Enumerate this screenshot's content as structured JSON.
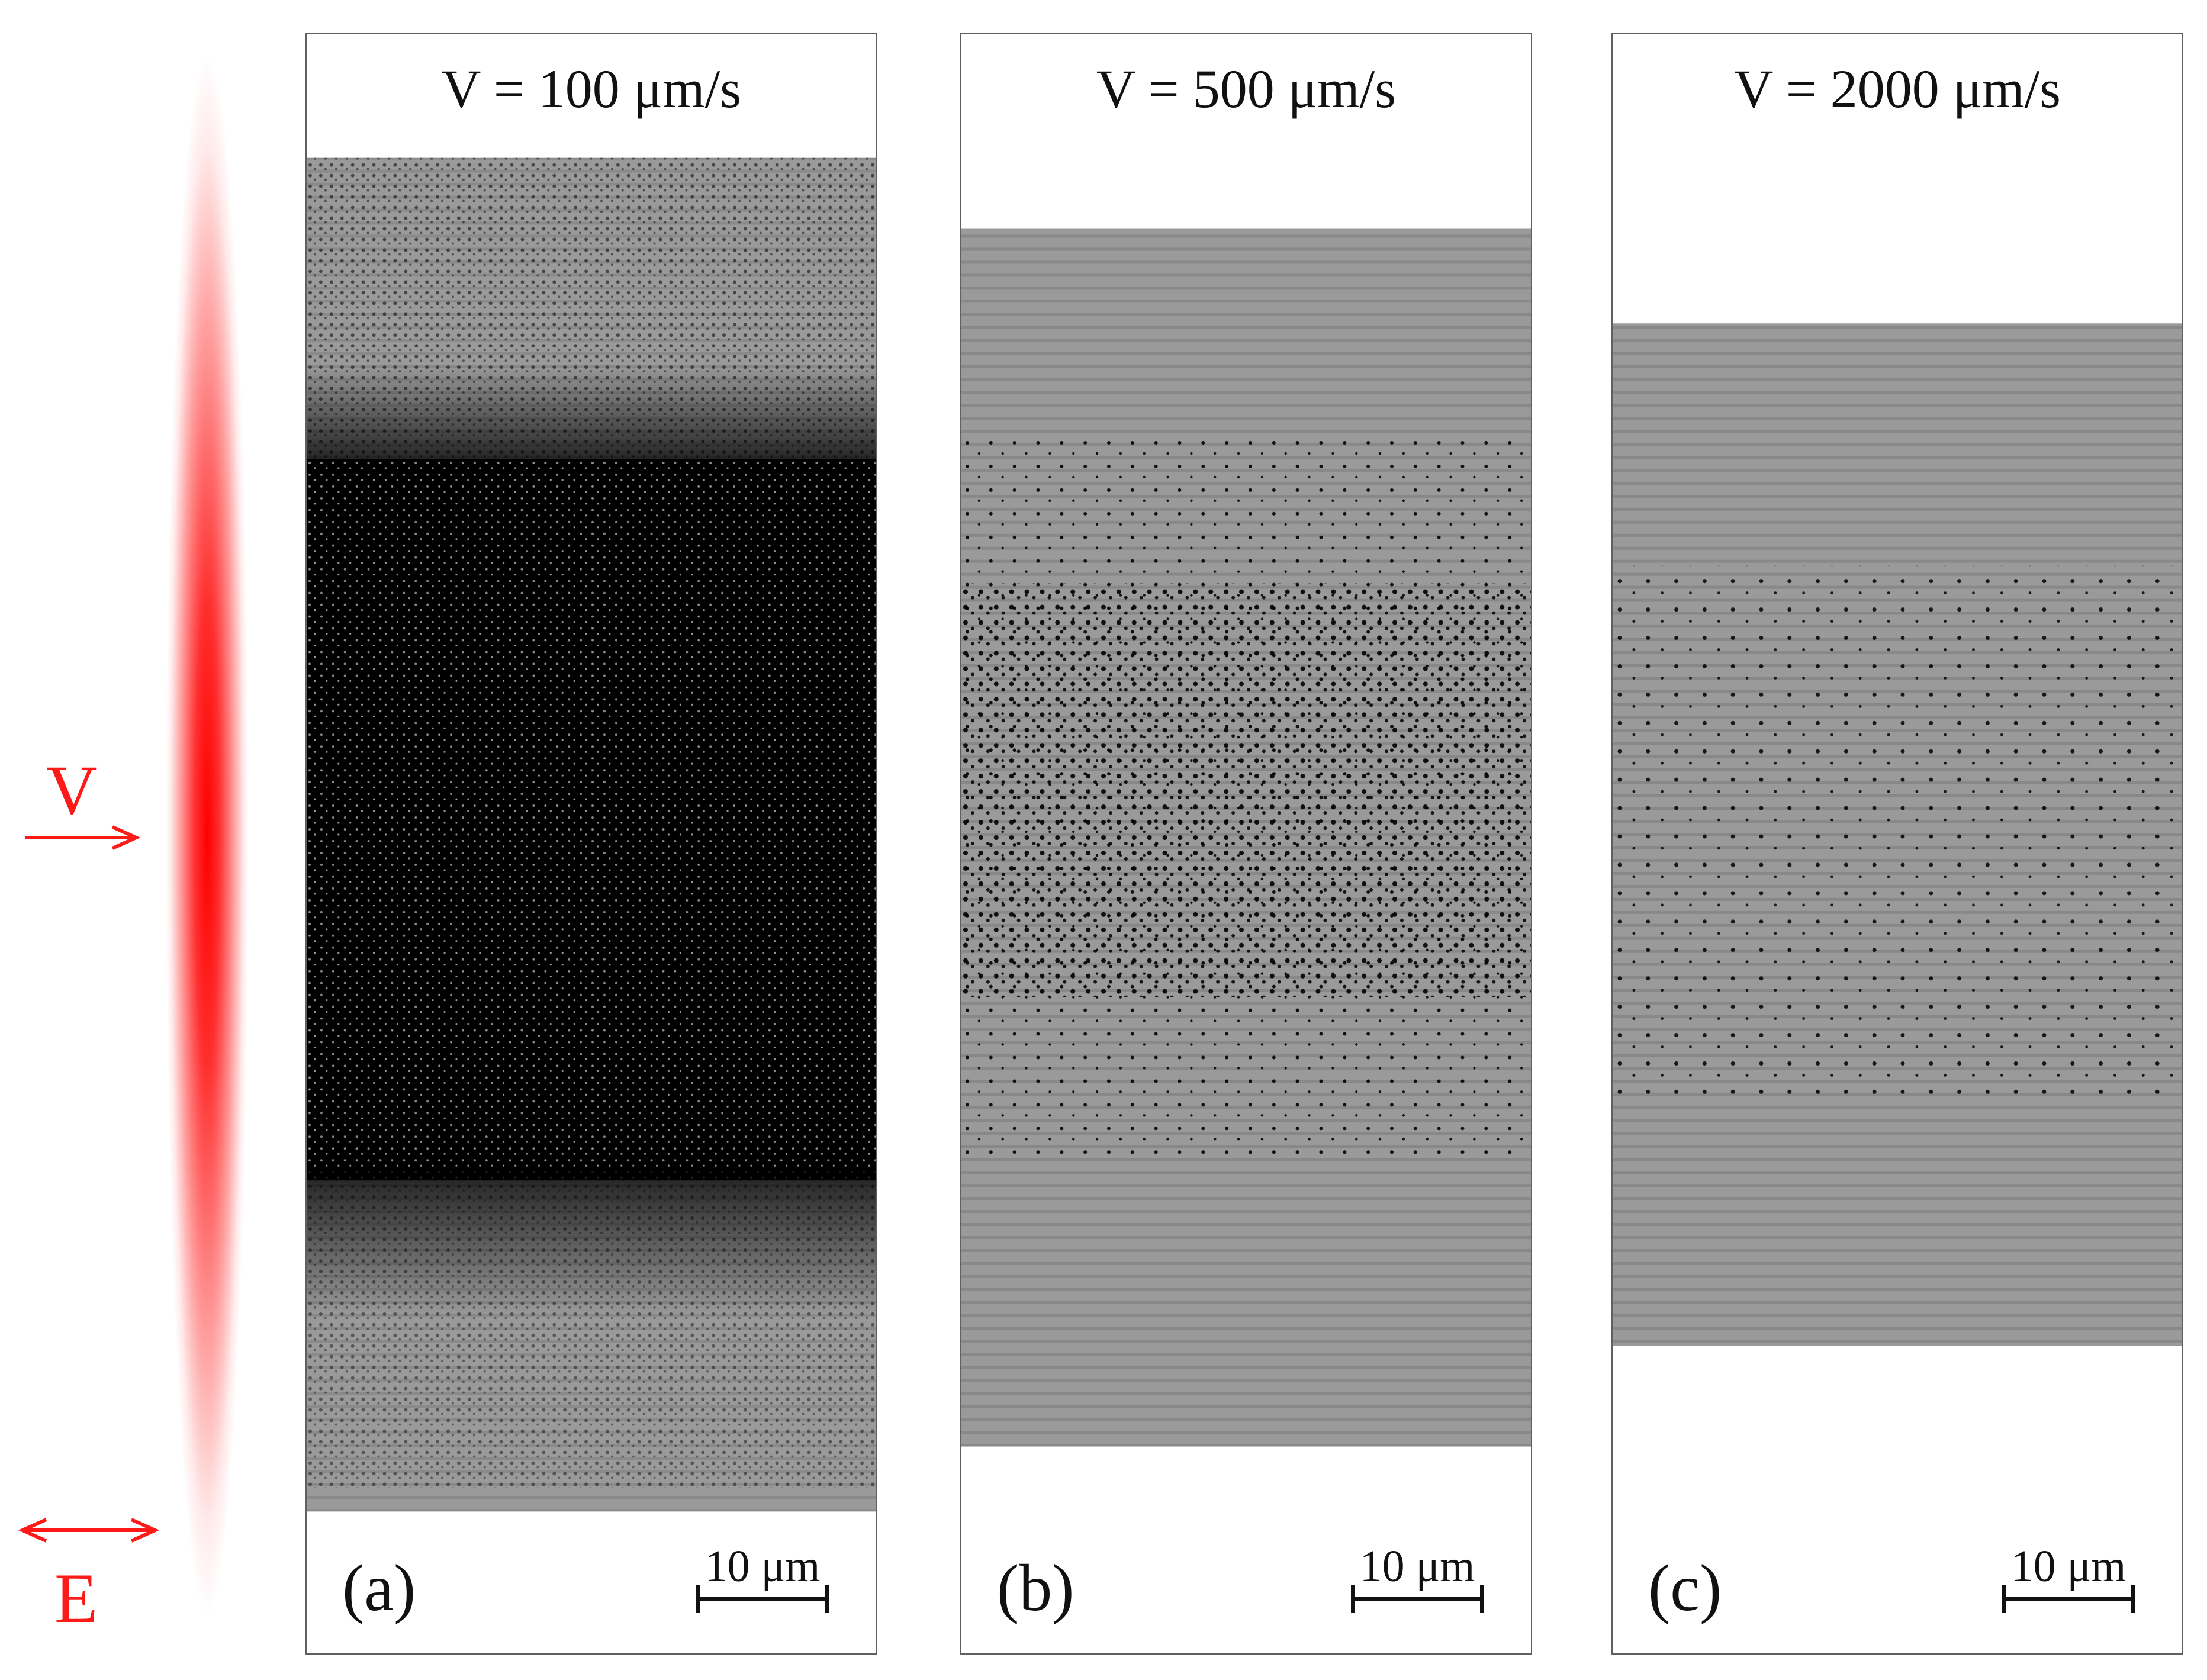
{
  "annotations": {
    "velocity_symbol": "V",
    "field_symbol": "E",
    "accent_color": "#ff1a1a"
  },
  "panels": [
    {
      "label": "(a)",
      "title": "V = 100 μm/s",
      "scale_bar": "10 μm"
    },
    {
      "label": "(b)",
      "title": "V = 500 μm/s",
      "scale_bar": "10 μm"
    },
    {
      "label": "(c)",
      "title": "V = 2000 μm/s",
      "scale_bar": "10 μm"
    }
  ]
}
